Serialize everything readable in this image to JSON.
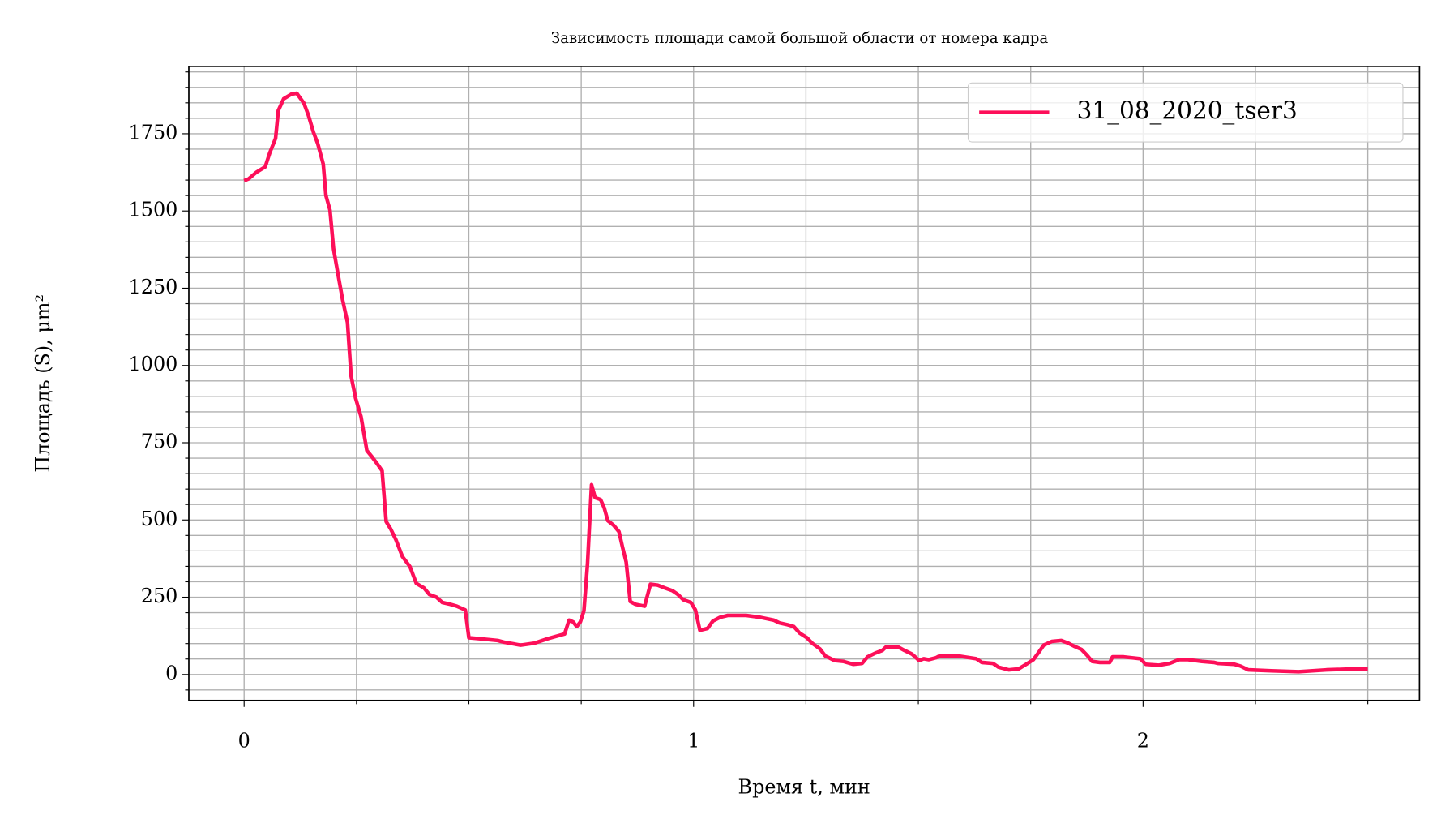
{
  "chart_data": {
    "type": "line",
    "title": "Зависимость площади самой большой области от номера кадра",
    "xlabel": "Время t, мин",
    "ylabel": "Площадь (S), μm²",
    "x": [
      0,
      0.01,
      0.027,
      0.047,
      0.057,
      0.07,
      0.076,
      0.088,
      0.105,
      0.117,
      0.133,
      0.143,
      0.154,
      0.164,
      0.176,
      0.182,
      0.191,
      0.199,
      0.209,
      0.219,
      0.23,
      0.238,
      0.248,
      0.26,
      0.273,
      0.283,
      0.297,
      0.307,
      0.316,
      0.326,
      0.338,
      0.352,
      0.369,
      0.383,
      0.4,
      0.412,
      0.428,
      0.441,
      0.459,
      0.473,
      0.492,
      0.5,
      0.523,
      0.564,
      0.58,
      0.615,
      0.645,
      0.676,
      0.713,
      0.723,
      0.732,
      0.74,
      0.748,
      0.756,
      0.764,
      0.773,
      0.781,
      0.793,
      0.801,
      0.809,
      0.822,
      0.834,
      0.842,
      0.85,
      0.859,
      0.871,
      0.891,
      0.904,
      0.92,
      0.936,
      0.953,
      0.965,
      0.977,
      0.994,
      1.004,
      1.014,
      1.031,
      1.043,
      1.059,
      1.076,
      1.117,
      1.148,
      1.178,
      1.191,
      1.209,
      1.223,
      1.236,
      1.252,
      1.264,
      1.281,
      1.293,
      1.314,
      1.334,
      1.355,
      1.375,
      1.387,
      1.404,
      1.42,
      1.428,
      1.455,
      1.469,
      1.486,
      1.502,
      1.512,
      1.523,
      1.539,
      1.547,
      1.588,
      1.629,
      1.641,
      1.666,
      1.678,
      1.701,
      1.723,
      1.74,
      1.756,
      1.768,
      1.779,
      1.797,
      1.818,
      1.834,
      1.846,
      1.863,
      1.875,
      1.887,
      1.904,
      1.926,
      1.932,
      1.957,
      1.994,
      2.006,
      2.035,
      2.059,
      2.08,
      2.1,
      2.131,
      2.158,
      2.166,
      2.203,
      2.217,
      2.234,
      2.285,
      2.346,
      2.408,
      2.469,
      2.5
    ],
    "series": [
      {
        "name": "31_08_2020_tser3",
        "color": "#fd0f59",
        "values": [
          1598,
          1604,
          1625,
          1643,
          1688,
          1735,
          1825,
          1863,
          1878,
          1881,
          1849,
          1810,
          1756,
          1717,
          1652,
          1550,
          1503,
          1377,
          1294,
          1213,
          1139,
          966,
          894,
          835,
          725,
          707,
          680,
          659,
          495,
          471,
          435,
          382,
          349,
          295,
          280,
          259,
          250,
          233,
          227,
          221,
          209,
          119,
          116,
          110,
          104,
          95,
          101,
          116,
          131,
          176,
          170,
          155,
          170,
          206,
          358,
          614,
          572,
          566,
          540,
          498,
          483,
          462,
          411,
          364,
          236,
          227,
          221,
          292,
          289,
          280,
          271,
          259,
          242,
          233,
          209,
          143,
          149,
          173,
          185,
          191,
          191,
          185,
          176,
          167,
          161,
          155,
          134,
          119,
          101,
          83,
          60,
          45,
          42,
          33,
          36,
          57,
          69,
          78,
          89,
          89,
          78,
          66,
          45,
          51,
          48,
          54,
          60,
          60,
          51,
          39,
          36,
          24,
          15,
          18,
          33,
          48,
          72,
          95,
          107,
          110,
          101,
          92,
          81,
          63,
          42,
          39,
          39,
          57,
          57,
          51,
          33,
          30,
          36,
          48,
          48,
          42,
          39,
          36,
          33,
          27,
          15,
          12,
          9,
          15,
          18,
          18
        ]
      }
    ],
    "xlim": [
      -0.123,
      2.615
    ],
    "ylim": [
      -84,
      1968
    ],
    "xticks": [
      0,
      1,
      2
    ],
    "yticks": [
      0,
      250,
      500,
      750,
      1000,
      1250,
      1500,
      1750
    ],
    "minor_xticks": [
      0.25,
      0.5,
      0.75,
      1.25,
      1.5,
      1.75,
      2.25,
      2.5
    ],
    "minor_yticks": [
      -50,
      50,
      100,
      150,
      200,
      300,
      350,
      400,
      450,
      550,
      600,
      650,
      700,
      800,
      850,
      900,
      950,
      1050,
      1100,
      1150,
      1200,
      1300,
      1350,
      1400,
      1450,
      1550,
      1600,
      1650,
      1700,
      1800,
      1850,
      1900,
      1950
    ],
    "grid": true,
    "legend": "upper right"
  }
}
